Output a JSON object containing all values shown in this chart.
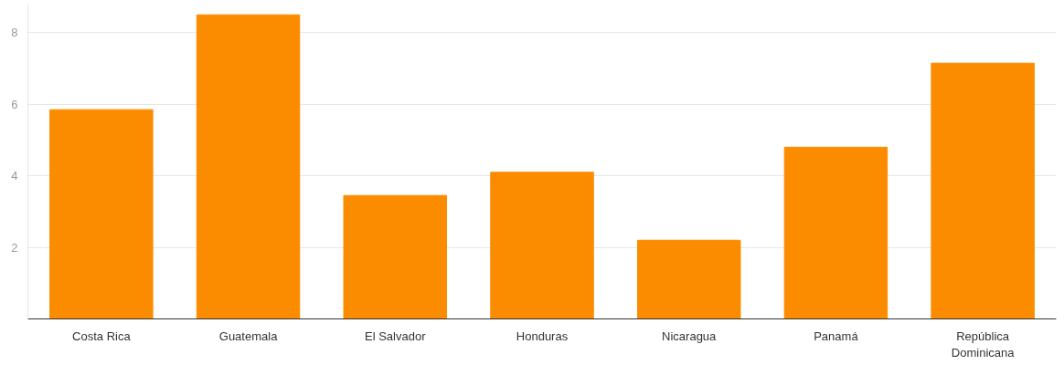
{
  "chart_data": {
    "type": "bar",
    "categories": [
      "Costa Rica",
      "Guatemala",
      "El Salvador",
      "Honduras",
      "Nicaragua",
      "Panamá",
      "República Dominicana"
    ],
    "values": [
      5.85,
      8.5,
      3.45,
      4.1,
      2.2,
      4.8,
      7.15
    ],
    "color": "#fb8c00",
    "ylim": [
      0,
      8.8
    ],
    "yticks": [
      2,
      4,
      6,
      8
    ],
    "grid": "y"
  }
}
